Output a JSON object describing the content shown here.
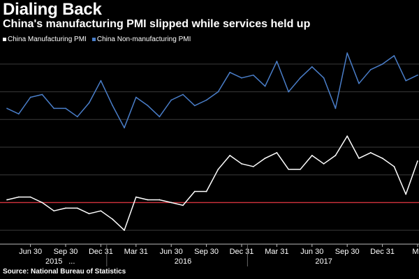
{
  "chart_data": {
    "type": "line",
    "title": "Dialing Back",
    "subtitle": "China's manufacturing PMI slipped while services held up",
    "xlabel": "",
    "ylabel": "",
    "grid": true,
    "legend_position": "top-left",
    "x": [
      "2015-04",
      "2015-05",
      "2015-06",
      "2015-07",
      "2015-08",
      "2015-09",
      "2015-10",
      "2015-11",
      "2015-12",
      "2016-01",
      "2016-02",
      "2016-03",
      "2016-04",
      "2016-05",
      "2016-06",
      "2016-07",
      "2016-08",
      "2016-09",
      "2016-10",
      "2016-11",
      "2016-12",
      "2017-01",
      "2017-02",
      "2017-03",
      "2017-04",
      "2017-05",
      "2017-06",
      "2017-07",
      "2017-08",
      "2017-09",
      "2017-10",
      "2017-11",
      "2017-12",
      "2018-01",
      "2018-02",
      "2018-03"
    ],
    "x_tick_labels": [
      "Jun 30",
      "Sep 30",
      "Dec 31",
      "Mar 31",
      "Jun 30",
      "Sep 30",
      "Dec 31",
      "Mar 31",
      "Jun 30",
      "Sep 30",
      "Dec 31",
      "Ma"
    ],
    "x_tick_dates": [
      "2015-06",
      "2015-09",
      "2015-12",
      "2016-03",
      "2016-06",
      "2016-09",
      "2016-12",
      "2017-03",
      "2017-06",
      "2017-09",
      "2017-12",
      "2018-03"
    ],
    "year_labels": [
      {
        "text": "2015",
        "center": "2015-08"
      },
      {
        "text": "2016",
        "center": "2016-07"
      },
      {
        "text": "2017",
        "center": "2017-07"
      }
    ],
    "year_ellipsis": "...",
    "ylim": [
      48.5,
      55.5
    ],
    "y_gridlines": [
      49,
      50,
      51,
      52,
      53,
      54,
      55
    ],
    "reference_line": 50.0,
    "series": [
      {
        "name": "China Manufacturing PMI",
        "color": "#ffffff",
        "values": [
          50.1,
          50.2,
          50.2,
          50.0,
          49.7,
          49.8,
          49.8,
          49.6,
          49.7,
          49.4,
          49.0,
          50.2,
          50.1,
          50.1,
          50.0,
          49.9,
          50.4,
          50.4,
          51.2,
          51.7,
          51.4,
          51.3,
          51.6,
          51.8,
          51.2,
          51.2,
          51.7,
          51.4,
          51.7,
          52.4,
          51.6,
          51.8,
          51.6,
          51.3,
          50.3,
          51.5
        ]
      },
      {
        "name": "China Non-manufacturing PMI",
        "color": "#4a7ec9",
        "values": [
          53.4,
          53.2,
          53.8,
          53.9,
          53.4,
          53.4,
          53.1,
          53.6,
          54.4,
          53.5,
          52.7,
          53.8,
          53.5,
          53.1,
          53.7,
          53.9,
          53.5,
          53.7,
          54.0,
          54.7,
          54.5,
          54.6,
          54.2,
          55.1,
          54.0,
          54.5,
          54.9,
          54.5,
          53.4,
          55.4,
          54.3,
          54.8,
          55.0,
          55.3,
          54.4,
          54.6
        ]
      }
    ]
  },
  "source": "Source: National Bureau of Statistics"
}
